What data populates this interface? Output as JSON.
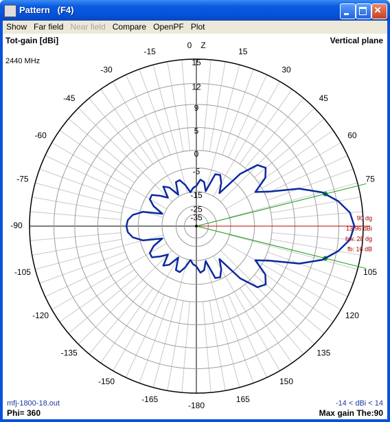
{
  "window": {
    "title": "Pattern   (F4)"
  },
  "menu": [
    "Show",
    "Far field",
    "Near field",
    "Compare",
    "OpenPF",
    "Plot"
  ],
  "chart_data": {
    "type": "polar",
    "title": "Tot-gain [dBi]",
    "subtitle": "Vertical plane",
    "frequency": "2440 MHz",
    "axis_label": "Z",
    "theta_ticks": [
      0,
      15,
      30,
      45,
      60,
      75,
      105,
      120,
      135,
      150,
      165,
      -180,
      -165,
      -150,
      -135,
      -120,
      -105,
      -90,
      -75,
      -60,
      -45,
      -30,
      -15
    ],
    "r_ticks": [
      15,
      12,
      9,
      5,
      0,
      -5,
      -15,
      -25,
      -35
    ],
    "theta": [
      -180,
      -175,
      -170,
      -165,
      -160,
      -155,
      -150,
      -145,
      -140,
      -135,
      -130,
      -125,
      -120,
      -115,
      -110,
      -105,
      -100,
      -95,
      -90,
      -85,
      -80,
      -75,
      -70,
      -65,
      -60,
      -55,
      -50,
      -45,
      -40,
      -35,
      -30,
      -25,
      -20,
      -15,
      -10,
      -5,
      0,
      5,
      10,
      15,
      20,
      25,
      30,
      35,
      40,
      45,
      50,
      55,
      60,
      65,
      70,
      75,
      80,
      85,
      90,
      95,
      100,
      105,
      110,
      115,
      120,
      125,
      130,
      135,
      140,
      145,
      150,
      155,
      160,
      165,
      170,
      175
    ],
    "values": [
      -12,
      -13,
      -15,
      -11,
      -8.3,
      -8.5,
      -14,
      -9,
      -7.3,
      -12,
      -9,
      -6.3,
      -6.5,
      -9,
      -14,
      -6,
      -3,
      -1.8,
      -1.5,
      -1.8,
      -3,
      -6,
      -14,
      -9,
      -6.5,
      -6.3,
      -9,
      -12,
      -7.3,
      -9,
      -14,
      -8.5,
      -8.3,
      -11,
      -15,
      -13,
      -12,
      -9.2,
      -10,
      -14,
      -6,
      -5.6,
      -8,
      -12,
      -2,
      2.5,
      3.4,
      2,
      -2,
      1.5,
      7,
      10.3,
      12.2,
      13.5,
      13.96,
      13.5,
      12.2,
      10.3,
      7,
      1.5,
      -2,
      2,
      3.4,
      2.5,
      -2,
      -12,
      -8,
      -5.6,
      -6,
      -14,
      -10,
      -9.2
    ],
    "color": "#0c2aa0",
    "max_direction": 90,
    "beam_edges": [
      76,
      104
    ],
    "annotations": [
      "90 dg",
      "13.96 dBi",
      "bw: 28 dg",
      "fb: 16 dB"
    ],
    "footer": {
      "file": "mfj-1800-18.out",
      "phi": "Phi= 360",
      "range": "-14 < dBi < 14",
      "max_gain": "Max gain The:90"
    }
  }
}
